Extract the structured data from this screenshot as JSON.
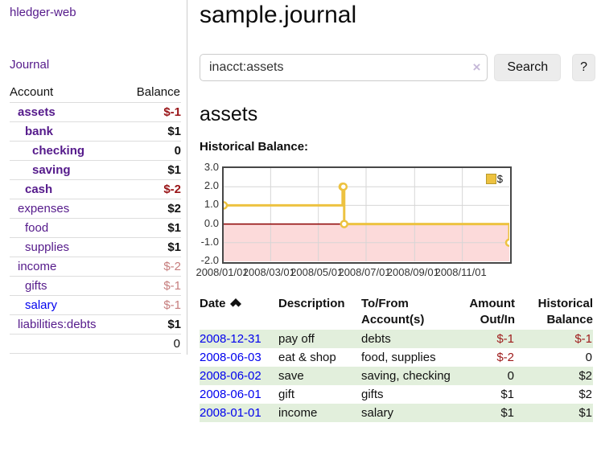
{
  "sidebar": {
    "brand": "hledger-web",
    "nav": {
      "journal_label": "Journal"
    },
    "accounts_table": {
      "headers": {
        "account": "Account",
        "balance": "Balance"
      },
      "rows": [
        {
          "account": "assets",
          "balance": "$-1"
        },
        {
          "account": "bank",
          "balance": "$1"
        },
        {
          "account": "checking",
          "balance": "0"
        },
        {
          "account": "saving",
          "balance": "$1"
        },
        {
          "account": "cash",
          "balance": "$-2"
        },
        {
          "account": "expenses",
          "balance": "$2"
        },
        {
          "account": "food",
          "balance": "$1"
        },
        {
          "account": "supplies",
          "balance": "$1"
        },
        {
          "account": "income",
          "balance": "$-2"
        },
        {
          "account": "gifts",
          "balance": "$-1"
        },
        {
          "account": "salary",
          "balance": "$-1"
        },
        {
          "account": "liabilities:debts",
          "balance": "$1"
        }
      ],
      "total": "0"
    }
  },
  "main": {
    "title": "sample.journal",
    "search": {
      "value": "inacct:assets",
      "clear_glyph": "×",
      "button_label": "Search",
      "help_label": "?"
    },
    "account_heading": "assets",
    "register": {
      "headers": {
        "date": "Date",
        "description": "Description",
        "tofrom_line1": "To/From",
        "tofrom_line2": "Account(s)",
        "amount_line1": "Amount",
        "amount_line2": "Out/In",
        "balance_line1": "Historical",
        "balance_line2": "Balance"
      },
      "rows": [
        {
          "date": "2008-12-31",
          "description": "pay off",
          "accounts": "debts",
          "amount": "$-1",
          "balance": "$-1"
        },
        {
          "date": "2008-06-03",
          "description": "eat & shop",
          "accounts": "food, supplies",
          "amount": "$-2",
          "balance": "0"
        },
        {
          "date": "2008-06-02",
          "description": "save",
          "accounts": "saving, checking",
          "amount": "0",
          "balance": "$2"
        },
        {
          "date": "2008-06-01",
          "description": "gift",
          "accounts": "gifts",
          "amount": "$1",
          "balance": "$2"
        },
        {
          "date": "2008-01-01",
          "description": "income",
          "accounts": "salary",
          "amount": "$1",
          "balance": "$1"
        }
      ]
    }
  },
  "chart_data": {
    "type": "line",
    "step": true,
    "title": "Historical Balance:",
    "series": [
      {
        "name": "$",
        "color": "#edc240",
        "points": [
          [
            "2008-01-01",
            1
          ],
          [
            "2008-06-01",
            2
          ],
          [
            "2008-06-02",
            2
          ],
          [
            "2008-06-03",
            0
          ],
          [
            "2008-12-31",
            -1
          ]
        ]
      }
    ],
    "x_ticks": [
      "2008/01/01",
      "2008/03/01",
      "2008/05/01",
      "2008/07/01",
      "2008/09/01",
      "2008/11/01"
    ],
    "y_ticks": [
      "3.0",
      "2.0",
      "1.0",
      "0.0",
      "-1.0",
      "-2.0"
    ],
    "xlim": [
      "2008-01-01",
      "2008-12-31"
    ],
    "ylim": [
      -2,
      3
    ],
    "grid": true,
    "legend_position": "top-right",
    "colors": {
      "negative_region": "#fcdada",
      "zero_line": "#8b0000",
      "grid": "#d6d6d6",
      "border": "#474747"
    }
  }
}
